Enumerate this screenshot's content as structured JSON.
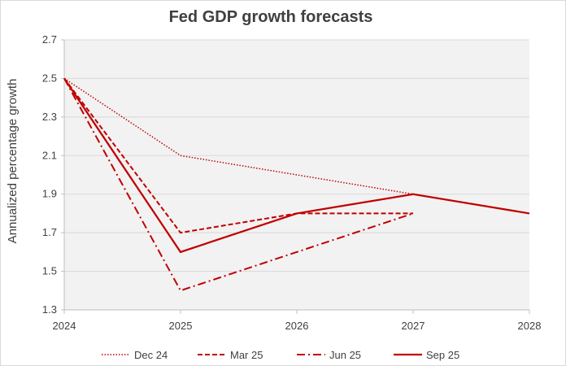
{
  "chart_data": {
    "type": "line",
    "title": "Fed GDP growth forecasts",
    "xlabel": "",
    "ylabel": "Annualized percentage growth",
    "x_ticks": [
      "2024",
      "2025",
      "2026",
      "2027",
      "2028"
    ],
    "y_ticks": [
      "1.3",
      "1.5",
      "1.7",
      "1.9",
      "2.1",
      "2.3",
      "2.5",
      "2.7"
    ],
    "xlim": [
      2024,
      2028
    ],
    "ylim": [
      1.3,
      2.7
    ],
    "grid": "horizontal",
    "legend": "bottom",
    "colors": {
      "series": "#c00000",
      "grid": "#d9d9d9",
      "plot_bg": "#f2f2f2",
      "text": "#404040"
    },
    "series": [
      {
        "name": "Dec 24",
        "style": "dotted",
        "x": [
          2024,
          2025,
          2026,
          2027
        ],
        "values": [
          2.5,
          2.1,
          2.0,
          1.9
        ]
      },
      {
        "name": "Mar 25",
        "style": "dashed",
        "x": [
          2024,
          2025,
          2026,
          2027
        ],
        "values": [
          2.5,
          1.7,
          1.8,
          1.8
        ]
      },
      {
        "name": "Jun 25",
        "style": "dash-dot",
        "x": [
          2024,
          2025,
          2026,
          2027
        ],
        "values": [
          2.5,
          1.4,
          1.6,
          1.8
        ]
      },
      {
        "name": "Sep 25",
        "style": "solid",
        "x": [
          2024,
          2025,
          2026,
          2027,
          2028
        ],
        "values": [
          2.5,
          1.6,
          1.8,
          1.9,
          1.8
        ]
      }
    ]
  }
}
